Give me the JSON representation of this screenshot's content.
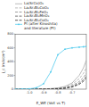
{
  "chart_data": {
    "type": "line",
    "xlabel": "E_WE (Volt vs T)",
    "ylabel": "j_c (mA/cm²)",
    "x": [
      -1.1,
      -1.05,
      -1.0,
      -0.95,
      -0.9,
      -0.85,
      -0.8,
      -0.75,
      -0.7,
      -0.65,
      -0.62,
      -0.6
    ],
    "xlim": [
      -1.1,
      -0.6
    ],
    "xticks": [
      {
        "value": -1.0,
        "label": "-1.0"
      },
      -0.9,
      -0.8,
      -0.7
    ],
    "ylim": [
      0,
      800
    ],
    "yticks": [
      0,
      200,
      400,
      600,
      800
    ],
    "grid": false,
    "legend": "upper left",
    "series": [
      {
        "name": "La(SrCo)O₃",
        "color": "#aaaaaa",
        "line_style": "solid",
        "values": [
          0,
          0.5,
          1,
          2,
          4,
          8,
          18,
          40,
          90,
          200,
          310,
          420
        ]
      },
      {
        "name": "La₂Sr₂Bi₂CoO₃",
        "color": "#aaaaaa",
        "line_style": "dashed",
        "values": [
          0,
          0.3,
          0.8,
          1.5,
          3,
          6,
          13,
          30,
          70,
          150,
          230,
          310
        ]
      },
      {
        "name": "La₂Sr₂Bi₂FeO₃",
        "color": "#888888",
        "line_style": "dashed",
        "values": [
          0,
          0.2,
          0.5,
          1,
          2,
          4,
          9,
          20,
          50,
          110,
          170,
          230
        ]
      },
      {
        "name": "La₂Sr₂Bi₂MnO₃",
        "color": "#555555",
        "line_style": "dashed",
        "values": [
          0,
          0.1,
          0.4,
          0.8,
          1.5,
          3,
          7,
          15,
          38,
          85,
          135,
          185
        ]
      },
      {
        "name": "La₂Sr₂Bi₂CoO₃",
        "color": "#333333",
        "line_style": "dashed",
        "values": [
          0,
          0.1,
          0.3,
          0.6,
          1.2,
          2.5,
          5,
          12,
          30,
          70,
          115,
          160
        ]
      },
      {
        "name": "Pt (after Kinoshita)\nand literature (Pt)",
        "color": "#55ccee",
        "line_style": "solid",
        "marker": "circle",
        "values": [
          0,
          1,
          5,
          20,
          80,
          250,
          500,
          580,
          600,
          610,
          615,
          620
        ]
      }
    ]
  }
}
